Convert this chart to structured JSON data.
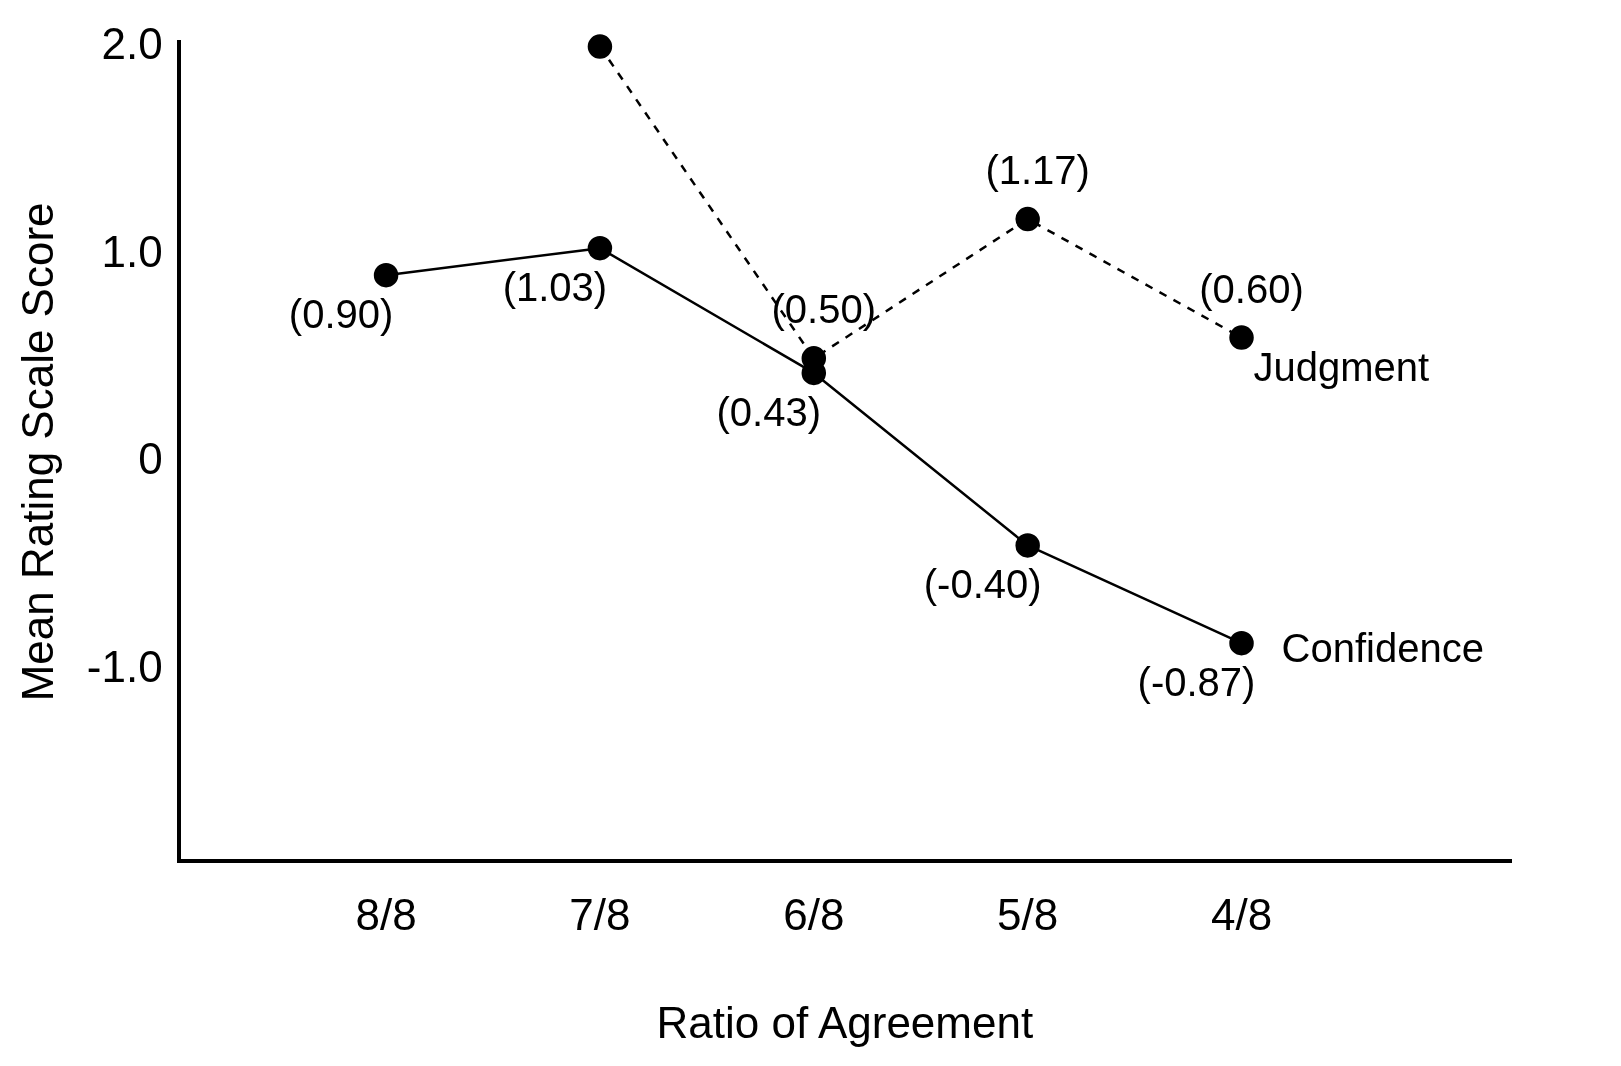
{
  "chart_data": {
    "type": "line",
    "xlabel": "Ratio of Agreement",
    "ylabel": "Mean Rating Scale Score",
    "categories": [
      "8/8",
      "7/8",
      "6/8",
      "5/8",
      "4/8"
    ],
    "series": [
      {
        "name": "Confidence",
        "color": "#000000",
        "line_style": "solid",
        "values": [
          0.9,
          1.03,
          0.43,
          -0.4,
          -0.87
        ],
        "value_labels": [
          "(0.90)",
          "(1.03)",
          "(0.43)",
          "(-0.40)",
          "(-0.87)"
        ]
      },
      {
        "name": "Judgment",
        "color": "#000000",
        "line_style": "dashed",
        "values": [
          null,
          2.0,
          0.5,
          1.17,
          0.6
        ],
        "value_labels": [
          null,
          null,
          "(0.50)",
          "(1.17)",
          "(0.60)"
        ]
      }
    ],
    "ylim": [
      -1.92,
      2.02
    ],
    "yticks": [
      {
        "value": -1,
        "label": "-1.0"
      },
      0,
      {
        "value": 1,
        "label": "1.0"
      },
      {
        "value": 2,
        "label": "2.0"
      }
    ],
    "marker": "circle",
    "grid": false,
    "legend": false
  }
}
